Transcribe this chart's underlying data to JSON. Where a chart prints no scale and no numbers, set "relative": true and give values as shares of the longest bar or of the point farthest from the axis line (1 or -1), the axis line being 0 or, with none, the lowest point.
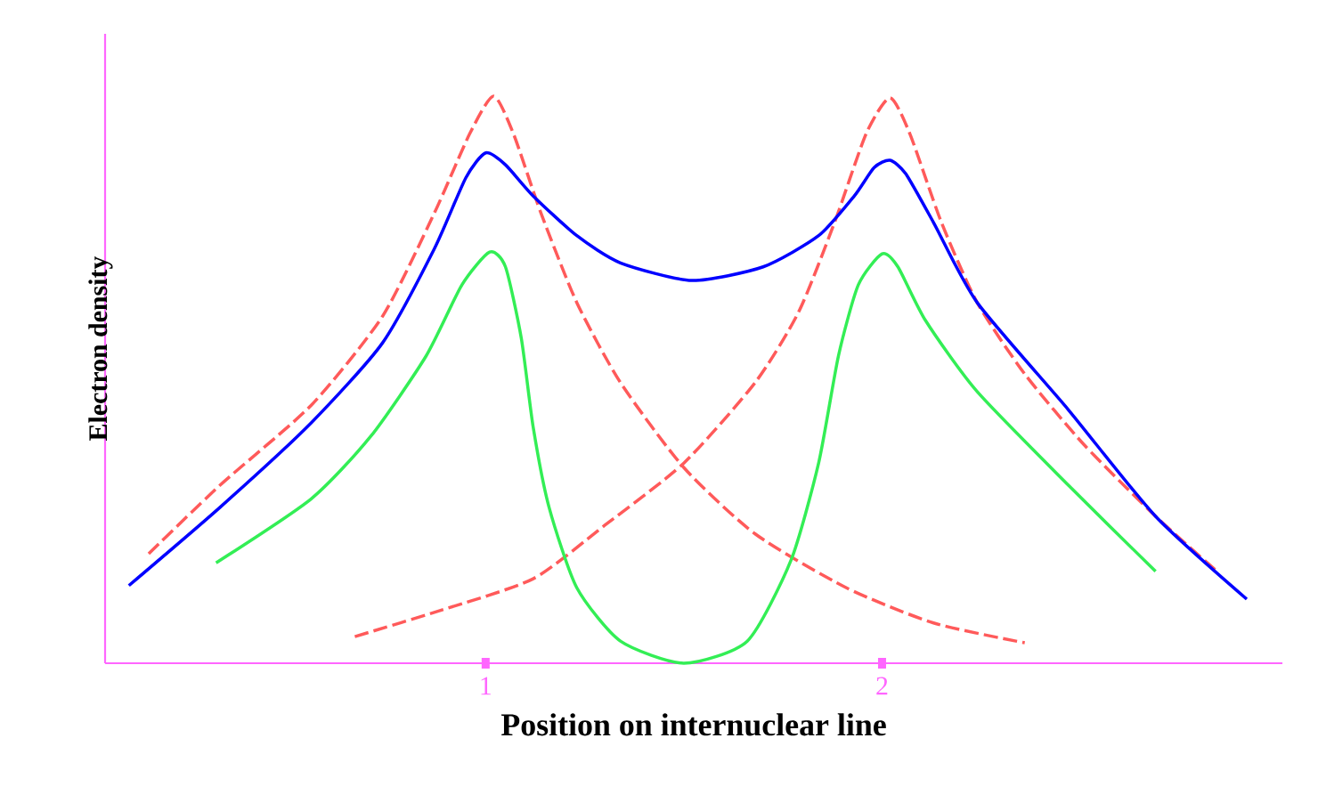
{
  "chart_data": {
    "type": "line",
    "xlabel": "Position on internuclear line",
    "ylabel": "Electron density",
    "relative": true,
    "xlim": [
      0.04,
      3.01
    ],
    "xticks": [
      1,
      2
    ],
    "line_style": "solid",
    "series": [
      {
        "color": "#ff5a5a",
        "line_style": "dashed",
        "x": [
          0.15,
          0.33,
          0.56,
          0.74,
          0.87,
          0.96,
          1.02,
          1.07,
          1.14,
          1.23,
          1.34,
          1.5,
          1.68,
          1.91,
          2.13,
          2.36
        ],
        "values": [
          0.193,
          0.314,
          0.455,
          0.612,
          0.793,
          0.934,
          1.0,
          0.934,
          0.793,
          0.636,
          0.495,
          0.345,
          0.228,
          0.133,
          0.071,
          0.036
        ]
      },
      {
        "color": "#ff5a5a",
        "line_style": "dashed",
        "x": [
          0.67,
          0.89,
          1.12,
          1.3,
          1.5,
          1.68,
          1.79,
          1.88,
          1.96,
          2.02,
          2.07,
          2.15,
          2.24,
          2.36,
          2.51,
          2.69,
          2.84
        ],
        "values": [
          0.047,
          0.094,
          0.149,
          0.243,
          0.353,
          0.495,
          0.62,
          0.777,
          0.934,
          0.997,
          0.934,
          0.777,
          0.636,
          0.51,
          0.385,
          0.259,
          0.165
        ]
      },
      {
        "color": "#0000ff",
        "x": [
          0.1,
          0.33,
          0.56,
          0.74,
          0.87,
          0.95,
          1.0,
          1.05,
          1.12,
          1.23,
          1.34,
          1.52,
          1.7,
          1.84,
          1.93,
          1.98,
          2.02,
          2.06,
          2.13,
          2.24,
          2.47,
          2.69,
          2.92
        ],
        "values": [
          0.137,
          0.275,
          0.424,
          0.565,
          0.73,
          0.856,
          0.9,
          0.879,
          0.824,
          0.754,
          0.706,
          0.675,
          0.699,
          0.754,
          0.824,
          0.874,
          0.887,
          0.863,
          0.777,
          0.636,
          0.447,
          0.259,
          0.113
        ]
      },
      {
        "color": "#33ee55",
        "x": [
          0.32,
          0.56,
          0.71,
          0.85,
          0.94,
          1.01,
          1.05,
          1.09,
          1.12,
          1.16,
          1.23,
          1.34,
          1.5,
          1.66,
          1.77,
          1.84,
          1.89,
          1.94,
          2.0,
          2.04,
          2.11,
          2.24,
          2.47,
          2.69
        ],
        "values": [
          0.177,
          0.29,
          0.4,
          0.542,
          0.667,
          0.725,
          0.699,
          0.573,
          0.416,
          0.275,
          0.133,
          0.039,
          0.0,
          0.039,
          0.181,
          0.353,
          0.542,
          0.667,
          0.722,
          0.699,
          0.604,
          0.479,
          0.314,
          0.162
        ]
      }
    ]
  }
}
